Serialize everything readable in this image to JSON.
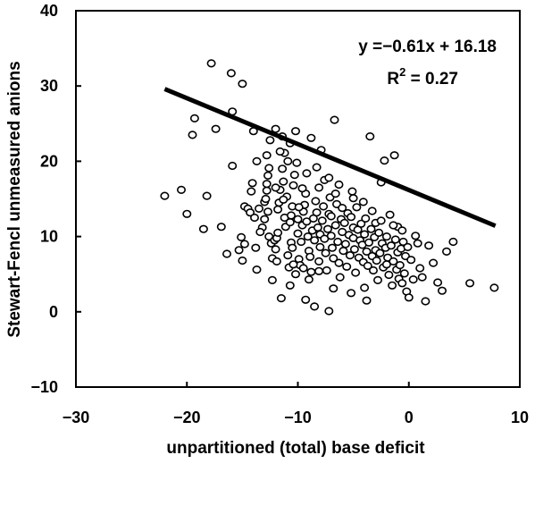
{
  "chart_data": {
    "type": "scatter",
    "xlabel": "unpartitioned (total) base deficit",
    "ylabel": "Stewart-Fencl unmeasured anions",
    "xlim": [
      -30,
      10
    ],
    "ylim": [
      -10,
      40
    ],
    "xticks": [
      -30,
      -20,
      -10,
      0,
      10
    ],
    "yticks": [
      -10,
      0,
      10,
      20,
      30,
      40
    ],
    "xtick_labels": [
      "−30",
      "−20",
      "−10",
      "0",
      "10"
    ],
    "ytick_labels": [
      "−10",
      "0",
      "10",
      "20",
      "30",
      "40"
    ],
    "grid": false,
    "annotations": {
      "equation": "y =−0.61x + 16.18",
      "r2_label": "R",
      "r2_sup": "2",
      "r2_value": " = 0.27"
    },
    "regression": {
      "slope": -0.61,
      "intercept": 16.18,
      "x_range": [
        -22,
        7.8
      ]
    },
    "points": [
      [
        -22,
        15.4
      ],
      [
        -20.5,
        16.2
      ],
      [
        -20,
        13
      ],
      [
        -19.5,
        23.5
      ],
      [
        -19.3,
        25.7
      ],
      [
        -18.5,
        11
      ],
      [
        -18.2,
        15.4
      ],
      [
        -17.8,
        33
      ],
      [
        -17.4,
        24.3
      ],
      [
        -16.9,
        11.3
      ],
      [
        -16.4,
        7.7
      ],
      [
        -16,
        31.7
      ],
      [
        -15.9,
        26.6
      ],
      [
        -15.9,
        19.4
      ],
      [
        -15,
        30.3
      ],
      [
        -15,
        6.8
      ],
      [
        -15.1,
        9.9
      ],
      [
        -14.8,
        14
      ],
      [
        -14.5,
        13.7
      ],
      [
        -14.3,
        13.2
      ],
      [
        -14.2,
        16
      ],
      [
        -14.1,
        17.1
      ],
      [
        -13.9,
        12.5
      ],
      [
        -13.8,
        8.5
      ],
      [
        -13.7,
        20
      ],
      [
        -14,
        24
      ],
      [
        -13.5,
        13.7
      ],
      [
        -13.2,
        11.2
      ],
      [
        -13,
        12.3
      ],
      [
        -13,
        14.6
      ],
      [
        -12.9,
        15
      ],
      [
        -12.8,
        16.1
      ],
      [
        -12.8,
        17
      ],
      [
        -12.7,
        18.1
      ],
      [
        -12.6,
        19.1
      ],
      [
        -12.5,
        22.8
      ],
      [
        -12.6,
        10
      ],
      [
        -12.4,
        9.1
      ],
      [
        -12.3,
        7.1
      ],
      [
        -12.1,
        9.5
      ],
      [
        -12,
        24.3
      ],
      [
        -12,
        8.3
      ],
      [
        -11.9,
        9.8
      ],
      [
        -11.8,
        10.5
      ],
      [
        -11.8,
        13.6
      ],
      [
        -11.7,
        14.5
      ],
      [
        -11.6,
        16.2
      ],
      [
        -11.4,
        23.3
      ],
      [
        -11.4,
        19
      ],
      [
        -11.3,
        17.3
      ],
      [
        -11.2,
        21.1
      ],
      [
        -11.2,
        12.5
      ],
      [
        -11.1,
        11.3
      ],
      [
        -11,
        15.3
      ],
      [
        -10.9,
        20
      ],
      [
        -10.9,
        7.5
      ],
      [
        -10.8,
        5.9
      ],
      [
        -10.7,
        3.5
      ],
      [
        -10.7,
        11.9
      ],
      [
        -10.6,
        9.2
      ],
      [
        -10.5,
        8.5
      ],
      [
        -10.5,
        14
      ],
      [
        -10.4,
        16.8
      ],
      [
        -10.3,
        18.2
      ],
      [
        -10.2,
        24
      ],
      [
        -10.1,
        19.8
      ],
      [
        -10,
        12.3
      ],
      [
        -10,
        10.4
      ],
      [
        -9.9,
        7
      ],
      [
        -9.8,
        6.2
      ],
      [
        -9.7,
        9.3
      ],
      [
        -9.6,
        11.5
      ],
      [
        -9.5,
        13.3
      ],
      [
        -9.4,
        14.2
      ],
      [
        -9.3,
        15.7
      ],
      [
        -9.2,
        12
      ],
      [
        -9.1,
        10
      ],
      [
        -9,
        8.1
      ],
      [
        -8.9,
        7.3
      ],
      [
        -8.8,
        23.1
      ],
      [
        -8.8,
        5.3
      ],
      [
        -8.7,
        10.8
      ],
      [
        -8.6,
        12.4
      ],
      [
        -8.5,
        9.5
      ],
      [
        -8.4,
        14.7
      ],
      [
        -8.3,
        13.2
      ],
      [
        -8.2,
        11.2
      ],
      [
        -8.1,
        6.7
      ],
      [
        -8,
        8.6
      ],
      [
        -8,
        10.3
      ],
      [
        -7.9,
        21.5
      ],
      [
        -7.8,
        12.1
      ],
      [
        -7.7,
        14
      ],
      [
        -7.6,
        9.7
      ],
      [
        -7.5,
        7.8
      ],
      [
        -7.4,
        5.5
      ],
      [
        -7.3,
        11
      ],
      [
        -7.2,
        13
      ],
      [
        -7.1,
        15.2
      ],
      [
        -7,
        10.1
      ],
      [
        -7,
        12.7
      ],
      [
        -6.9,
        8.5
      ],
      [
        -6.8,
        7.1
      ],
      [
        -6.7,
        25.5
      ],
      [
        -6.6,
        11.5
      ],
      [
        -6.5,
        14.3
      ],
      [
        -6.4,
        9.3
      ],
      [
        -6.3,
        6.5
      ],
      [
        -6.2,
        4.6
      ],
      [
        -6.1,
        12.3
      ],
      [
        -6,
        10.6
      ],
      [
        -6,
        13.8
      ],
      [
        -5.9,
        8.1
      ],
      [
        -5.8,
        11.8
      ],
      [
        -5.7,
        9
      ],
      [
        -5.6,
        6
      ],
      [
        -5.5,
        13.1
      ],
      [
        -5.4,
        10.2
      ],
      [
        -5.3,
        7.5
      ],
      [
        -5.2,
        12.6
      ],
      [
        -5.1,
        16
      ],
      [
        -5,
        9.8
      ],
      [
        -5,
        11.2
      ],
      [
        -4.9,
        8.3
      ],
      [
        -4.8,
        5.2
      ],
      [
        -4.7,
        13.9
      ],
      [
        -4.6,
        10.9
      ],
      [
        -4.5,
        7.2
      ],
      [
        -4.4,
        9.5
      ],
      [
        -4.3,
        11.7
      ],
      [
        -4.2,
        8.9
      ],
      [
        -4.1,
        6.6
      ],
      [
        -4,
        3.2
      ],
      [
        -4,
        10.3
      ],
      [
        -3.9,
        12.4
      ],
      [
        -3.8,
        8
      ],
      [
        -3.7,
        6.1
      ],
      [
        -3.6,
        9.2
      ],
      [
        -3.5,
        23.3
      ],
      [
        -3.4,
        11
      ],
      [
        -3.3,
        7.4
      ],
      [
        -3.2,
        5.5
      ],
      [
        -3.1,
        9.9
      ],
      [
        -3,
        8.2
      ],
      [
        -3,
        11.8
      ],
      [
        -2.9,
        6.8
      ],
      [
        -2.8,
        4.2
      ],
      [
        -2.7,
        10.5
      ],
      [
        -2.6,
        7.8
      ],
      [
        -2.5,
        17.2
      ],
      [
        -2.4,
        9.1
      ],
      [
        -2.3,
        5.9
      ],
      [
        -2.2,
        20.1
      ],
      [
        -2.1,
        8.5
      ],
      [
        -2,
        6.3
      ],
      [
        -2,
        10
      ],
      [
        -1.9,
        7.2
      ],
      [
        -1.8,
        4.9
      ],
      [
        -1.7,
        12.9
      ],
      [
        -1.6,
        8.8
      ],
      [
        -1.5,
        3.5
      ],
      [
        -1.4,
        6.7
      ],
      [
        -1.3,
        20.8
      ],
      [
        -1.2,
        9.6
      ],
      [
        -1.1,
        5.6
      ],
      [
        -1,
        7.9
      ],
      [
        -1,
        11.3
      ],
      [
        -0.9,
        4.4
      ],
      [
        -0.8,
        6.2
      ],
      [
        -0.7,
        8.4
      ],
      [
        -0.6,
        3.8
      ],
      [
        -0.5,
        9.3
      ],
      [
        -0.4,
        5.1
      ],
      [
        -0.3,
        7.4
      ],
      [
        -0.2,
        2.7
      ],
      [
        -0.1,
        8.6
      ],
      [
        0,
        1.9
      ],
      [
        0.2,
        6.9
      ],
      [
        0.4,
        4.3
      ],
      [
        0.6,
        10.1
      ],
      [
        0.8,
        9.1
      ],
      [
        1,
        5.8
      ],
      [
        1.2,
        4.6
      ],
      [
        1.5,
        1.4
      ],
      [
        1.8,
        8.8
      ],
      [
        2.2,
        6.5
      ],
      [
        2.6,
        3.9
      ],
      [
        3,
        2.8
      ],
      [
        3.4,
        8
      ],
      [
        4,
        9.3
      ],
      [
        5.5,
        3.8
      ],
      [
        7.7,
        3.2
      ],
      [
        -11.5,
        1.8
      ],
      [
        -9.3,
        1.6
      ],
      [
        -7.2,
        0.1
      ],
      [
        -8.5,
        0.7
      ],
      [
        -12.3,
        4.2
      ],
      [
        -10.2,
        5
      ],
      [
        -9,
        4.3
      ],
      [
        -6.8,
        3.1
      ],
      [
        -5.2,
        2.5
      ],
      [
        -3.8,
        1.5
      ],
      [
        -13.7,
        5.6
      ],
      [
        -14.8,
        9
      ],
      [
        -15.3,
        8.2
      ],
      [
        -8.3,
        19.2
      ],
      [
        -7.6,
        17.5
      ],
      [
        -9.6,
        16.4
      ],
      [
        -11.6,
        21.3
      ],
      [
        -10.7,
        22.4
      ],
      [
        -12.8,
        20.8
      ],
      [
        -9.2,
        18.4
      ],
      [
        -6.3,
        16.9
      ],
      [
        -5,
        15.1
      ],
      [
        -4.1,
        14.6
      ],
      [
        -3.3,
        13.4
      ],
      [
        -2.5,
        12.1
      ],
      [
        -1.4,
        11.5
      ],
      [
        -0.6,
        10.8
      ],
      [
        -8.1,
        16.5
      ],
      [
        -7.2,
        17.8
      ],
      [
        -6.6,
        15.7
      ],
      [
        -9.9,
        13.9
      ],
      [
        -10.6,
        12.8
      ],
      [
        -11.3,
        14.9
      ],
      [
        -12,
        16.5
      ],
      [
        -12.7,
        13.3
      ],
      [
        -13.4,
        10.6
      ],
      [
        -11.9,
        6.7
      ],
      [
        -10.4,
        6.3
      ],
      [
        -9.5,
        5.8
      ],
      [
        -8.1,
        5.4
      ]
    ]
  }
}
